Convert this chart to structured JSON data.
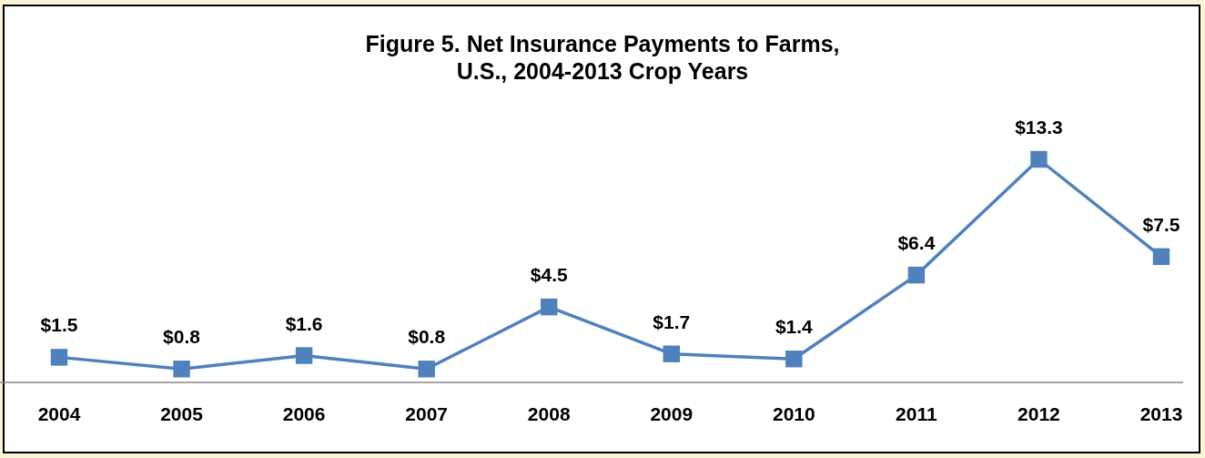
{
  "chart_data": {
    "type": "line",
    "title": "Figure 5.  Net Insurance Payments to Farms,\nU.S., 2004-2013 Crop Years",
    "categories": [
      "2004",
      "2005",
      "2006",
      "2007",
      "2008",
      "2009",
      "2010",
      "2011",
      "2012",
      "2013"
    ],
    "series": [
      {
        "color": "#4f81bd",
        "values": [
          1.5,
          0.8,
          1.6,
          0.8,
          4.5,
          1.7,
          1.4,
          6.4,
          13.3,
          7.5
        ],
        "value_labels": [
          "$1.5",
          "$0.8",
          "$1.6",
          "$0.8",
          "$4.5",
          "$1.7",
          "$1.4",
          "$6.4",
          "$13.3",
          "$7.5"
        ]
      }
    ],
    "marker": "square"
  }
}
